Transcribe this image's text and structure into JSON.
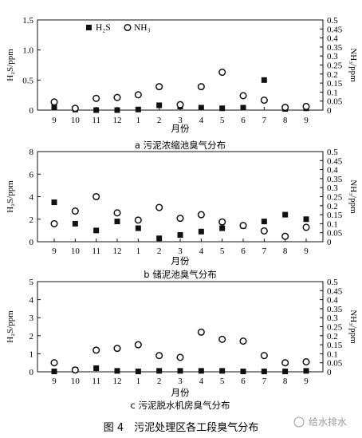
{
  "figure_title": "图 4　污泥处理区各工段臭气分布",
  "watermark": "给水排水",
  "legend": {
    "h2s_label": "H₂S",
    "nh3_label": "NH₃"
  },
  "chart_data": [
    {
      "type": "scatter",
      "title": "",
      "caption": "a 污泥浓缩池臭气分布",
      "xlabel": "月份",
      "ylabel_left": "H₂S/ppm",
      "ylabel_right": "NH₃/ppm",
      "categories": [
        "9",
        "10",
        "11",
        "12",
        "1",
        "2",
        "3",
        "4",
        "5",
        "6",
        "7",
        "8",
        "9"
      ],
      "ylim_left": [
        0,
        1.5
      ],
      "ylim_right": [
        0,
        0.5
      ],
      "yticks_left": [
        0,
        0.5,
        1.0,
        1.5
      ],
      "ytick_labels_left": [
        "0",
        "0.5",
        "1.0",
        "1.5"
      ],
      "yticks_right": [
        0,
        0.05,
        0.1,
        0.15,
        0.2,
        0.25,
        0.3,
        0.35,
        0.4,
        0.45,
        0.5
      ],
      "ytick_labels_right": [
        "0",
        "0.05",
        "0.1",
        "0.15",
        "0.2",
        "0.25",
        "0.3",
        "0.35",
        "0.4",
        "0.45",
        "0.5"
      ],
      "show_legend": true,
      "series": [
        {
          "name": "H₂S",
          "marker": "filled-square",
          "axis": "left",
          "values": [
            0.05,
            0.01,
            0.0,
            0.0,
            0.01,
            0.08,
            0.06,
            0.04,
            0.03,
            0.04,
            0.5,
            0.02,
            0.03
          ]
        },
        {
          "name": "NH₃",
          "marker": "open-circle",
          "axis": "right",
          "values": [
            0.045,
            0.01,
            0.065,
            0.07,
            0.085,
            0.13,
            0.03,
            0.13,
            0.21,
            0.08,
            0.055,
            0.015,
            0.02
          ]
        }
      ]
    },
    {
      "type": "scatter",
      "title": "",
      "caption": "b 储泥池臭气分布",
      "xlabel": "月份",
      "ylabel_left": "H₂S/ppm",
      "ylabel_right": "NH₃/ppm",
      "categories": [
        "9",
        "10",
        "11",
        "12",
        "1",
        "2",
        "3",
        "4",
        "5",
        "6",
        "7",
        "8",
        "9"
      ],
      "ylim_left": [
        0,
        8
      ],
      "ylim_right": [
        0,
        0.5
      ],
      "yticks_left": [
        0,
        2,
        4,
        6,
        8
      ],
      "ytick_labels_left": [
        "0",
        "2",
        "4",
        "6",
        "8"
      ],
      "yticks_right": [
        0,
        0.05,
        0.1,
        0.15,
        0.2,
        0.25,
        0.3,
        0.35,
        0.4,
        0.45,
        0.5
      ],
      "ytick_labels_right": [
        "0",
        "0.05",
        "0.1",
        "0.15",
        "0.2",
        "0.25",
        "0.3",
        "0.35",
        "0.4",
        "0.45",
        "0.5"
      ],
      "show_legend": false,
      "series": [
        {
          "name": "H₂S",
          "marker": "filled-square",
          "axis": "left",
          "values": [
            3.5,
            1.6,
            1.0,
            1.8,
            1.2,
            0.3,
            0.6,
            0.9,
            1.2,
            1.4,
            1.8,
            2.4,
            2.0
          ]
        },
        {
          "name": "NH₃",
          "marker": "open-circle",
          "axis": "right",
          "values": [
            0.1,
            0.17,
            0.25,
            0.16,
            0.12,
            0.19,
            0.13,
            0.15,
            0.11,
            0.09,
            0.06,
            0.03,
            0.08
          ]
        }
      ]
    },
    {
      "type": "scatter",
      "title": "",
      "caption": "c 污泥脱水机房臭气分布",
      "xlabel": "月份",
      "ylabel_left": "H₂S/ppm",
      "ylabel_right": "NH₃/ppm",
      "categories": [
        "9",
        "10",
        "11",
        "12",
        "1",
        "2",
        "3",
        "4",
        "5",
        "6",
        "7",
        "8",
        "9"
      ],
      "ylim_left": [
        0,
        5
      ],
      "ylim_right": [
        0,
        0.5
      ],
      "yticks_left": [
        0,
        1,
        2,
        3,
        4,
        5
      ],
      "ytick_labels_left": [
        "0",
        "1",
        "2",
        "3",
        "4",
        "5"
      ],
      "yticks_right": [
        0,
        0.05,
        0.1,
        0.15,
        0.2,
        0.25,
        0.3,
        0.35,
        0.4,
        0.45,
        0.5
      ],
      "ytick_labels_right": [
        "0",
        "0.05",
        "0.1",
        "0.15",
        "0.2",
        "0.25",
        "0.3",
        "0.35",
        "0.4",
        "0.45",
        "0.5"
      ],
      "show_legend": false,
      "series": [
        {
          "name": "H₂S",
          "marker": "filled-square",
          "axis": "left",
          "values": [
            0.02,
            0.1,
            0.2,
            0.05,
            0.02,
            0.05,
            0.05,
            0.05,
            0.05,
            0.02,
            0.02,
            0.02,
            0.05
          ]
        },
        {
          "name": "NH₃",
          "marker": "open-circle",
          "axis": "right",
          "values": [
            0.05,
            0.01,
            0.12,
            0.13,
            0.15,
            0.09,
            0.08,
            0.22,
            0.18,
            0.17,
            0.09,
            0.05,
            0.055
          ]
        }
      ]
    }
  ]
}
